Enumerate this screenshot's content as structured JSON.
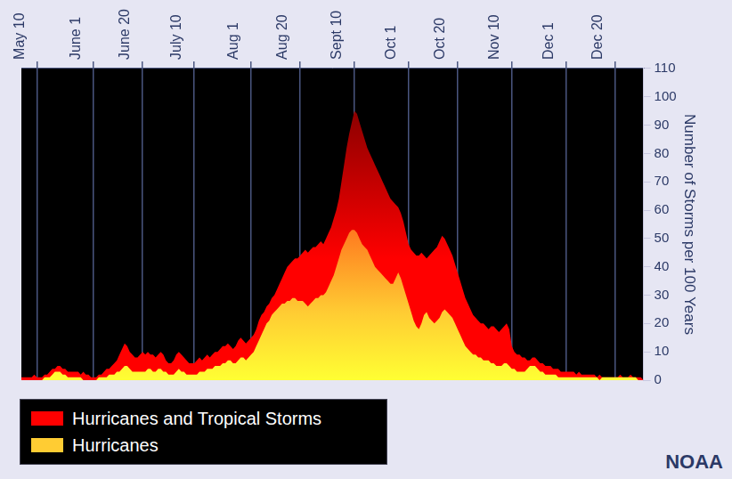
{
  "chart_data": {
    "type": "area",
    "categories": [
      null,
      null,
      null,
      null,
      null,
      null,
      "May 10",
      null,
      null,
      null,
      null,
      null,
      null,
      null,
      null,
      null,
      null,
      null,
      null,
      null,
      null,
      null,
      null,
      null,
      null,
      null,
      null,
      null,
      "June 1",
      null,
      null,
      null,
      null,
      null,
      null,
      null,
      null,
      null,
      null,
      null,
      null,
      null,
      null,
      null,
      null,
      null,
      null,
      "June 20",
      null,
      null,
      null,
      null,
      null,
      null,
      null,
      null,
      null,
      null,
      null,
      null,
      null,
      null,
      null,
      null,
      null,
      null,
      null,
      "July 10",
      null,
      null,
      null,
      null,
      null,
      null,
      null,
      null,
      null,
      null,
      null,
      null,
      null,
      null,
      null,
      null,
      null,
      null,
      null,
      null,
      null,
      "Aug 1",
      null,
      null,
      null,
      null,
      null,
      null,
      null,
      null,
      null,
      null,
      null,
      null,
      null,
      null,
      null,
      null,
      null,
      null,
      "Aug 20",
      null,
      null,
      null,
      null,
      null,
      null,
      null,
      null,
      null,
      null,
      null,
      null,
      null,
      null,
      null,
      null,
      null,
      null,
      null,
      null,
      "Sept 10",
      null,
      null,
      null,
      null,
      null,
      null,
      null,
      null,
      null,
      null,
      null,
      null,
      null,
      null,
      null,
      null,
      null,
      null,
      null,
      null,
      "Oct 1",
      null,
      null,
      null,
      null,
      null,
      null,
      null,
      null,
      null,
      null,
      null,
      null,
      null,
      null,
      null,
      null,
      null,
      null,
      "Oct 20",
      null,
      null,
      null,
      null,
      null,
      null,
      null,
      null,
      null,
      null,
      null,
      null,
      null,
      null,
      null,
      null,
      null,
      null,
      null,
      null,
      "Nov 10",
      null,
      null,
      null,
      null,
      null,
      null,
      null,
      null,
      null,
      null,
      null,
      null,
      null,
      null,
      null,
      null,
      null,
      null,
      null,
      null,
      "Dec 1",
      null,
      null,
      null,
      null,
      null,
      null,
      null,
      null,
      null,
      null,
      null,
      null,
      null,
      null,
      null,
      null,
      null,
      null,
      "Dec 20",
      null,
      null,
      null,
      null,
      null,
      null,
      null,
      null,
      null,
      null,
      null
    ],
    "series": [
      {
        "name": "Hurricanes and Tropical Storms",
        "color": "#ff0000",
        "values": [
          1,
          1,
          1,
          1,
          1,
          2,
          1,
          1,
          1,
          2,
          2,
          3,
          4,
          4,
          5,
          5,
          4,
          4,
          3,
          3,
          3,
          3,
          3,
          2,
          3,
          2,
          2,
          1,
          1,
          1,
          2,
          2,
          3,
          4,
          4,
          5,
          6,
          7,
          9,
          11,
          13,
          12,
          10,
          9,
          8,
          8,
          9,
          10,
          9,
          10,
          9,
          9,
          8,
          9,
          10,
          9,
          7,
          6,
          6,
          7,
          9,
          10,
          9,
          8,
          7,
          6,
          6,
          6,
          7,
          8,
          7,
          8,
          9,
          8,
          9,
          10,
          10,
          11,
          12,
          12,
          13,
          12,
          11,
          12,
          14,
          15,
          14,
          13,
          14,
          15,
          16,
          18,
          21,
          23,
          24,
          26,
          27,
          29,
          30,
          32,
          34,
          36,
          38,
          40,
          41,
          42,
          43,
          43,
          44,
          45,
          46,
          45,
          46,
          47,
          47,
          48,
          49,
          48,
          50,
          52,
          54,
          57,
          60,
          64,
          70,
          76,
          82,
          87,
          91,
          95,
          94,
          91,
          88,
          85,
          82,
          80,
          78,
          76,
          74,
          72,
          70,
          68,
          66,
          64,
          63,
          62,
          61,
          59,
          56,
          52,
          48,
          46,
          45,
          44,
          44,
          45,
          44,
          43,
          44,
          45,
          46,
          47,
          49,
          51,
          50,
          48,
          46,
          44,
          41,
          38,
          35,
          32,
          29,
          27,
          25,
          23,
          22,
          21,
          20,
          20,
          19,
          18,
          19,
          19,
          18,
          17,
          18,
          19,
          20,
          18,
          12,
          10,
          9,
          9,
          8,
          8,
          7,
          7,
          8,
          8,
          7,
          6,
          6,
          5,
          5,
          5,
          4,
          4,
          4,
          3,
          3,
          3,
          3,
          3,
          3,
          2,
          3,
          2,
          2,
          2,
          2,
          2,
          2,
          1,
          2,
          1,
          1,
          1,
          1,
          1,
          1,
          1,
          2,
          1,
          1,
          1,
          2,
          1,
          1,
          1,
          1,
          0
        ]
      },
      {
        "name": "Hurricanes",
        "color": "#ffcc33",
        "values": [
          0,
          0,
          0,
          0,
          0,
          0,
          0,
          0,
          0,
          1,
          1,
          1,
          2,
          3,
          3,
          3,
          2,
          2,
          1,
          1,
          1,
          1,
          1,
          1,
          0,
          0,
          0,
          0,
          0,
          0,
          1,
          1,
          1,
          1,
          2,
          2,
          2,
          3,
          3,
          4,
          5,
          5,
          4,
          3,
          3,
          3,
          3,
          3,
          3,
          4,
          4,
          3,
          3,
          4,
          4,
          3,
          3,
          2,
          2,
          2,
          3,
          4,
          3,
          3,
          2,
          2,
          2,
          2,
          2,
          3,
          3,
          3,
          4,
          4,
          4,
          5,
          5,
          5,
          6,
          6,
          7,
          7,
          6,
          6,
          7,
          8,
          8,
          7,
          8,
          9,
          10,
          12,
          14,
          16,
          18,
          20,
          21,
          23,
          24,
          25,
          26,
          27,
          27,
          28,
          28,
          29,
          29,
          28,
          28,
          28,
          27,
          26,
          27,
          28,
          29,
          29,
          30,
          30,
          31,
          33,
          35,
          37,
          40,
          43,
          46,
          48,
          50,
          52,
          53,
          53,
          52,
          50,
          48,
          47,
          46,
          44,
          42,
          40,
          39,
          38,
          37,
          36,
          35,
          34,
          34,
          36,
          38,
          36,
          33,
          30,
          27,
          24,
          21,
          19,
          18,
          20,
          23,
          24,
          22,
          21,
          20,
          21,
          22,
          24,
          25,
          24,
          23,
          22,
          20,
          18,
          16,
          14,
          12,
          11,
          10,
          9,
          9,
          8,
          8,
          7,
          7,
          7,
          6,
          6,
          5,
          5,
          5,
          6,
          6,
          5,
          4,
          4,
          3,
          3,
          3,
          3,
          4,
          5,
          5,
          5,
          4,
          3,
          3,
          2,
          2,
          2,
          2,
          2,
          1,
          1,
          1,
          1,
          1,
          1,
          1,
          1,
          1,
          1,
          1,
          1,
          1,
          1,
          1,
          1,
          0,
          1,
          1,
          1,
          1,
          1,
          1,
          1,
          1,
          1,
          1,
          1,
          1,
          1,
          1,
          0,
          0,
          0
        ]
      }
    ],
    "ylabel": "Number of Storms per 100 Years",
    "ylim": [
      0,
      110
    ],
    "yticks": [
      0,
      10,
      20,
      30,
      40,
      50,
      60,
      70,
      80,
      90,
      100,
      110
    ],
    "grid": true,
    "legend": "lower left",
    "annotations": [
      "NOAA"
    ]
  }
}
